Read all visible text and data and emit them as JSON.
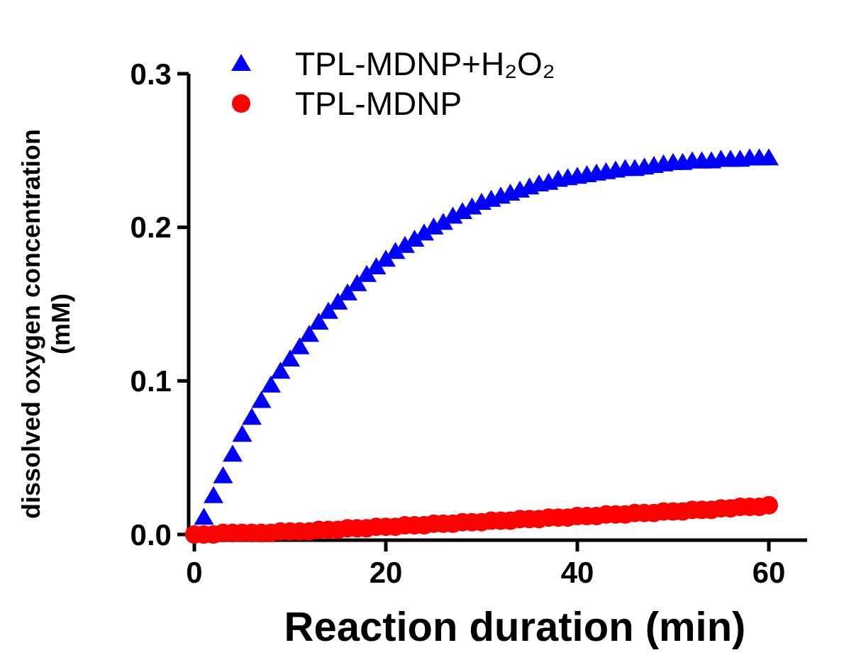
{
  "chart_data": {
    "type": "scatter",
    "xlabel": "Reaction duration (min)",
    "ylabel": "dissolved oxygen concentration\n(mM)",
    "x": [
      0,
      1,
      2,
      3,
      4,
      5,
      6,
      7,
      8,
      9,
      10,
      11,
      12,
      13,
      14,
      15,
      16,
      17,
      18,
      19,
      20,
      21,
      22,
      23,
      24,
      25,
      26,
      27,
      28,
      29,
      30,
      31,
      32,
      33,
      34,
      35,
      36,
      37,
      38,
      39,
      40,
      41,
      42,
      43,
      44,
      45,
      46,
      47,
      48,
      49,
      50,
      51,
      52,
      53,
      54,
      55,
      56,
      57,
      58,
      59,
      60
    ],
    "series": [
      {
        "name": "TPL-MDNP+H₂O₂",
        "color": "#0000ff",
        "marker": "triangle",
        "values": [
          null,
          0.011,
          0.025,
          0.038,
          0.052,
          0.065,
          0.076,
          0.087,
          0.097,
          0.106,
          0.114,
          0.122,
          0.13,
          0.138,
          0.145,
          0.151,
          0.157,
          0.163,
          0.169,
          0.174,
          0.179,
          0.184,
          0.188,
          0.192,
          0.196,
          0.2,
          0.203,
          0.207,
          0.21,
          0.213,
          0.216,
          0.218,
          0.22,
          0.222,
          0.224,
          0.226,
          0.228,
          0.229,
          0.231,
          0.232,
          0.233,
          0.234,
          0.235,
          0.236,
          0.237,
          0.238,
          0.238,
          0.239,
          0.24,
          0.241,
          0.242,
          0.242,
          0.243,
          0.243,
          0.243,
          0.244,
          0.244,
          0.244,
          0.245,
          0.245,
          0.245
        ]
      },
      {
        "name": "TPL-MDNP",
        "color": "#ff0000",
        "marker": "circle",
        "values": [
          0.0,
          0.0,
          0.0,
          0.001,
          0.001,
          0.001,
          0.001,
          0.001,
          0.001,
          0.002,
          0.002,
          0.002,
          0.002,
          0.003,
          0.003,
          0.003,
          0.004,
          0.004,
          0.004,
          0.005,
          0.005,
          0.005,
          0.006,
          0.006,
          0.006,
          0.007,
          0.007,
          0.007,
          0.008,
          0.008,
          0.008,
          0.009,
          0.009,
          0.009,
          0.01,
          0.01,
          0.01,
          0.011,
          0.011,
          0.011,
          0.012,
          0.012,
          0.012,
          0.013,
          0.013,
          0.013,
          0.014,
          0.014,
          0.014,
          0.015,
          0.015,
          0.015,
          0.016,
          0.016,
          0.016,
          0.017,
          0.017,
          0.018,
          0.018,
          0.018,
          0.019
        ]
      }
    ],
    "xlim": [
      0,
      64
    ],
    "xticks": [
      0,
      20,
      40,
      60
    ],
    "ylim": [
      0,
      0.3
    ],
    "yticks": [
      {
        "value": 0,
        "label": "0.0"
      },
      {
        "value": 0.1,
        "label": "0.1"
      },
      {
        "value": 0.2,
        "label": "0.2"
      },
      {
        "value": 0.3,
        "label": "0.3"
      }
    ],
    "grid": false,
    "legend": "top left"
  }
}
